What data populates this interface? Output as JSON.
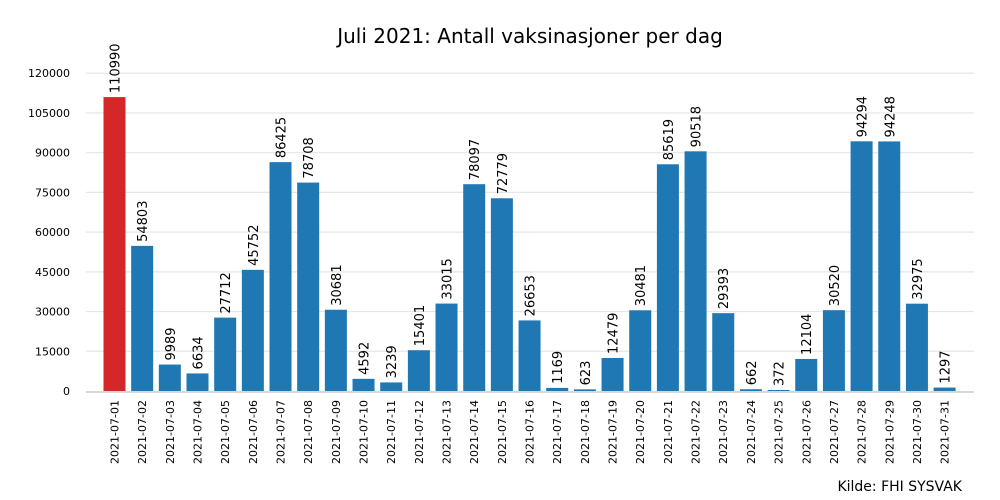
{
  "chart_data": {
    "type": "bar",
    "title": "Juli 2021: Antall vaksinasjoner per dag",
    "source": "Kilde: FHI SYSVAK",
    "xlabel": "",
    "ylabel": "",
    "ylim": [
      0,
      125000
    ],
    "yticks": [
      0,
      15000,
      30000,
      45000,
      60000,
      75000,
      90000,
      105000,
      120000
    ],
    "grid": true,
    "colors": {
      "default": "#1f77b4",
      "highlight": "#d62728"
    },
    "highlight_index": 0,
    "categories": [
      "2021-07-01",
      "2021-07-02",
      "2021-07-03",
      "2021-07-04",
      "2021-07-05",
      "2021-07-06",
      "2021-07-07",
      "2021-07-08",
      "2021-07-09",
      "2021-07-10",
      "2021-07-11",
      "2021-07-12",
      "2021-07-13",
      "2021-07-14",
      "2021-07-15",
      "2021-07-16",
      "2021-07-17",
      "2021-07-18",
      "2021-07-19",
      "2021-07-20",
      "2021-07-21",
      "2021-07-22",
      "2021-07-23",
      "2021-07-24",
      "2021-07-25",
      "2021-07-26",
      "2021-07-27",
      "2021-07-28",
      "2021-07-29",
      "2021-07-30",
      "2021-07-31"
    ],
    "values": [
      110990,
      54803,
      9989,
      6634,
      27712,
      45752,
      86425,
      78708,
      30681,
      4592,
      3239,
      15401,
      33015,
      78097,
      72779,
      26653,
      1169,
      623,
      12479,
      30481,
      85619,
      90518,
      29393,
      662,
      372,
      12104,
      30520,
      94294,
      94248,
      32975,
      1297
    ]
  }
}
